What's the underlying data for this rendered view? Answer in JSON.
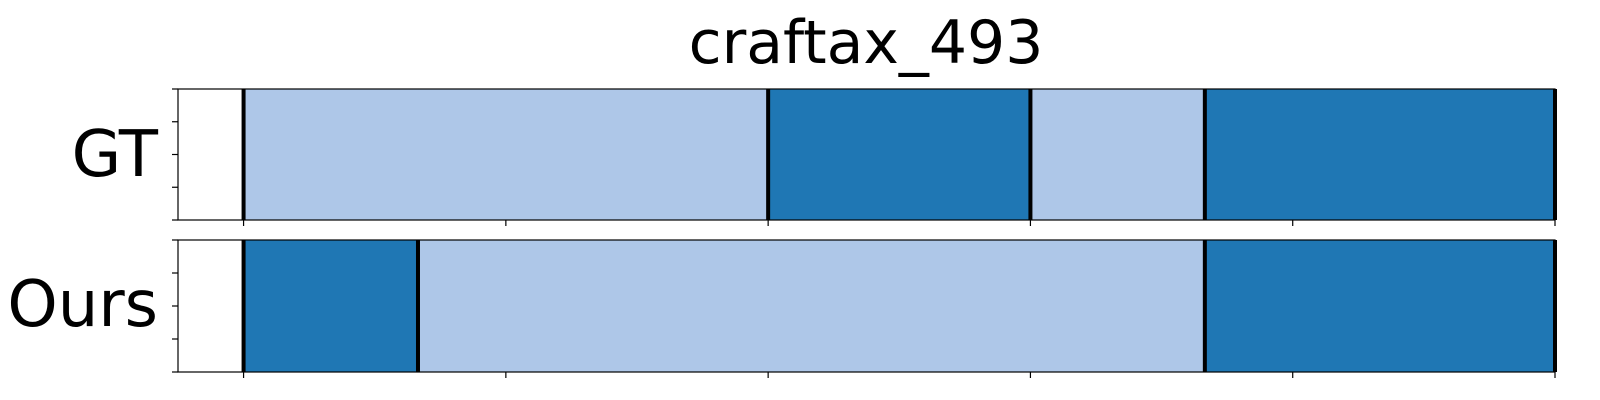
{
  "chart_data": {
    "type": "segmentation-timeline",
    "title": "craftax_493",
    "xlim": [
      -0.5,
      10
    ],
    "x_ticks": [
      0,
      2,
      4,
      6,
      8,
      10
    ],
    "y_ticks_per_row": 5,
    "colors": {
      "light": "#aec7e8",
      "dark": "#1f77b4",
      "boundary": "#000000",
      "frame": "#000000"
    },
    "rows": [
      {
        "label": "GT",
        "segments": [
          {
            "start": 0,
            "end": 4,
            "class": "light"
          },
          {
            "start": 4,
            "end": 6,
            "class": "dark"
          },
          {
            "start": 6,
            "end": 7.33,
            "class": "light"
          },
          {
            "start": 7.33,
            "end": 10,
            "class": "dark"
          }
        ]
      },
      {
        "label": "Ours",
        "segments": [
          {
            "start": 0,
            "end": 1.33,
            "class": "dark"
          },
          {
            "start": 1.33,
            "end": 7.33,
            "class": "light"
          },
          {
            "start": 7.33,
            "end": 10,
            "class": "dark"
          }
        ]
      }
    ]
  }
}
